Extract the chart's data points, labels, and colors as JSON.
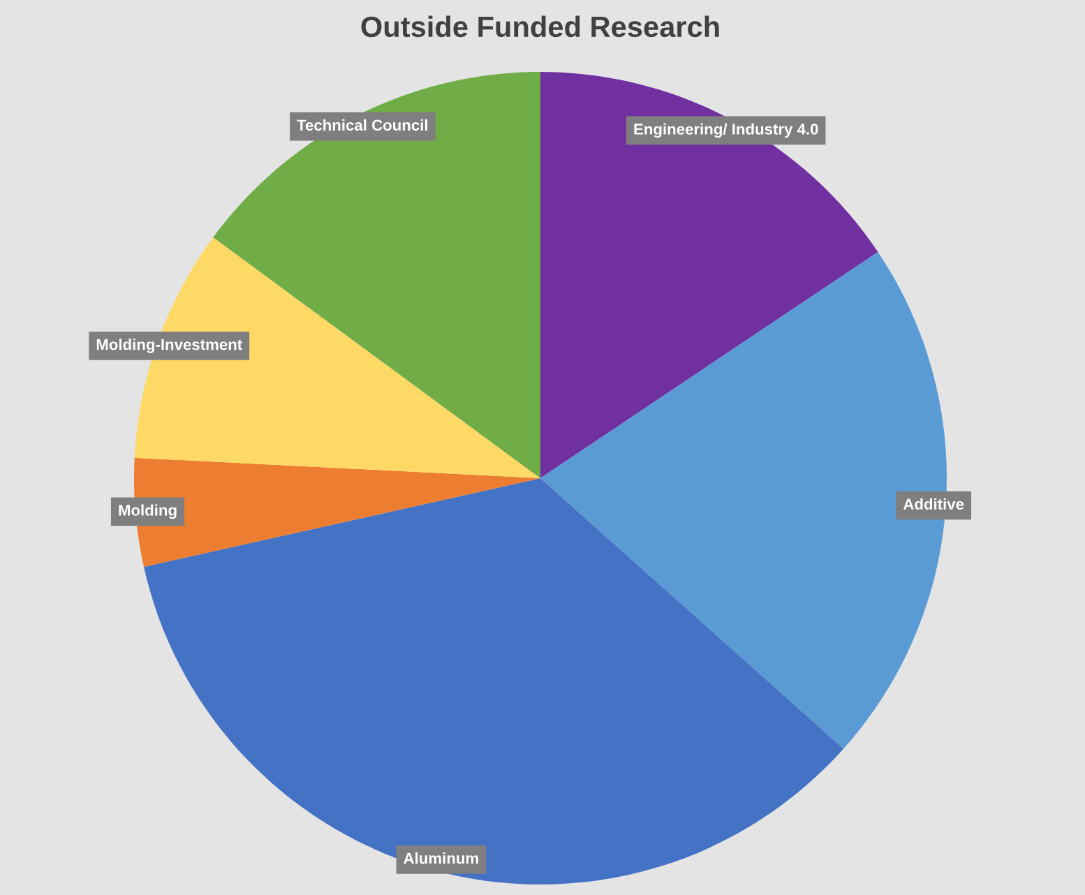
{
  "chart_data": {
    "type": "pie",
    "title": "Outside Funded Research",
    "categories": [
      "Engineering/ Industry 4.0",
      "Additive",
      "Aluminum",
      "Molding",
      "Molding-Investment",
      "Technical Council"
    ],
    "values": [
      15.6,
      21.0,
      34.9,
      4.3,
      9.3,
      14.9
    ],
    "colors": [
      "#7030a0",
      "#5b9bd5",
      "#4472c4",
      "#ed7d31",
      "#ffd966",
      "#70ad47"
    ]
  }
}
